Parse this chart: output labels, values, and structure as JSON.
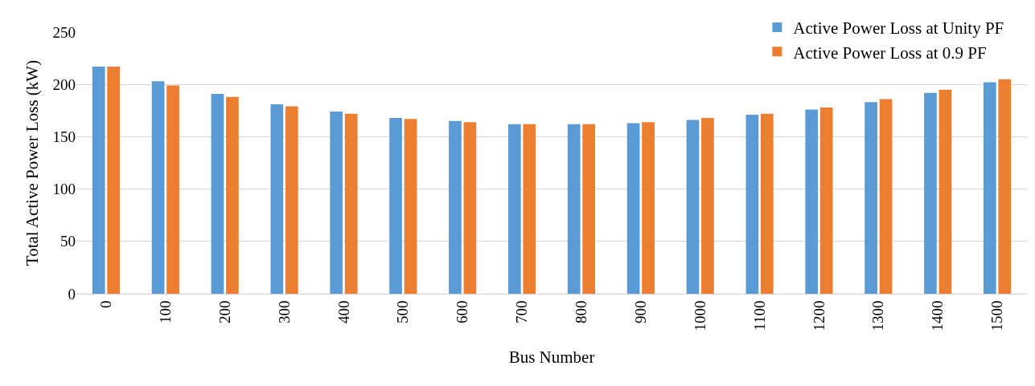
{
  "chart_data": {
    "type": "bar",
    "xlabel": "Bus Number",
    "ylabel": "Total Active Power Loss (kW)",
    "categories": [
      "0",
      "100",
      "200",
      "300",
      "400",
      "500",
      "600",
      "700",
      "800",
      "900",
      "1000",
      "1100",
      "1200",
      "1300",
      "1400",
      "1500"
    ],
    "series": [
      {
        "name": "Active Power Loss at Unity PF",
        "color": "#5b9bd5",
        "values": [
          217,
          203,
          191,
          181,
          174,
          168,
          165,
          162,
          162,
          163,
          166,
          171,
          176,
          183,
          192,
          202
        ]
      },
      {
        "name": "Active Power Loss at 0.9 PF",
        "color": "#ed7d31",
        "values": [
          217,
          199,
          188,
          179,
          172,
          167,
          164,
          162,
          162,
          164,
          168,
          172,
          178,
          186,
          195,
          205
        ]
      }
    ],
    "ylim": [
      0,
      250
    ],
    "yticks": [
      0,
      50,
      100,
      150,
      200,
      250
    ],
    "grid": "y",
    "legend": "top right"
  }
}
